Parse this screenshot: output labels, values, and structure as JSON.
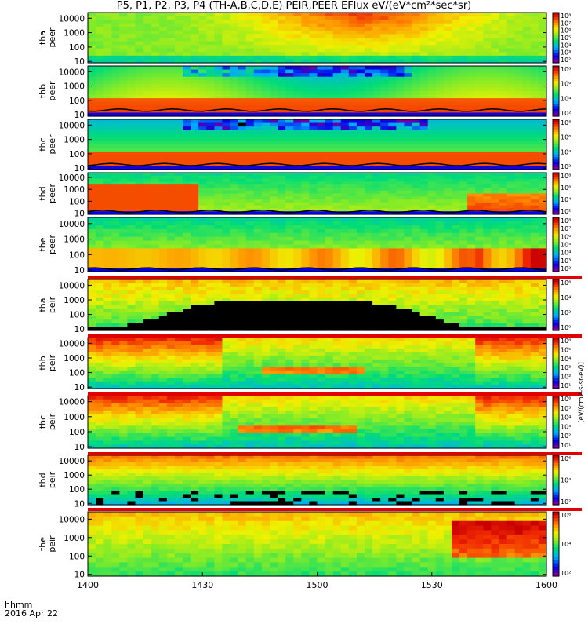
{
  "title": "P5, P1, P2, P3, P4 (TH-A,B,C,D,E) PEIR,PEER EFlux eV/(eV*cm²*sec*sr)",
  "footer": {
    "time_label": "hhmm",
    "date_label": "2016 Apr 22"
  },
  "chart_data": {
    "type": "heatmap",
    "x": {
      "ticks": [
        "1400",
        "1430",
        "1500",
        "1530",
        "1600"
      ],
      "range": [
        "1400",
        "1600"
      ]
    },
    "y_scale": "log",
    "colorbar_label": "[eV/(cm2-s-sr-eV)]",
    "panels": [
      {
        "label_top": "tha",
        "label_bottom": "peer",
        "yticks": [
          "10000",
          "1000",
          "100",
          "10"
        ],
        "ylim": [
          8,
          25000
        ],
        "cbar_ticks": [
          "10⁸",
          "10⁷",
          "10⁶",
          "10⁵",
          "10⁴",
          "10³",
          "10²"
        ]
      },
      {
        "label_top": "thb",
        "label_bottom": "peer",
        "yticks": [
          "10000",
          "1000",
          "100",
          "10"
        ],
        "ylim": [
          8,
          25000
        ],
        "cbar_ticks": [
          "10⁸",
          "10⁶",
          "10⁴",
          "10²"
        ]
      },
      {
        "label_top": "thc",
        "label_bottom": "peer",
        "yticks": [
          "10000",
          "1000",
          "100",
          "10"
        ],
        "ylim": [
          8,
          25000
        ],
        "cbar_ticks": [
          "10⁸",
          "10⁶",
          "10⁴",
          "10²"
        ]
      },
      {
        "label_top": "thd",
        "label_bottom": "peer",
        "yticks": [
          "10000",
          "1000",
          "100",
          "10"
        ],
        "ylim": [
          8,
          25000
        ],
        "cbar_ticks": [
          "10⁸",
          "10⁶",
          "10⁴",
          "10²"
        ]
      },
      {
        "label_top": "the",
        "label_bottom": "peer",
        "yticks": [
          "10000",
          "1000",
          "100",
          "10"
        ],
        "ylim": [
          8,
          25000
        ],
        "cbar_ticks": [
          "10⁸",
          "10⁷",
          "10⁶",
          "10⁵",
          "10⁴",
          "10³",
          "10²"
        ]
      },
      {
        "label_top": "tha",
        "label_bottom": "peir",
        "yticks": [
          "10000",
          "1000",
          "100",
          "10"
        ],
        "ylim": [
          8,
          25000
        ],
        "cbar_ticks": [
          "10⁶",
          "10⁴",
          "10²",
          "10⁰"
        ]
      },
      {
        "label_top": "thb",
        "label_bottom": "peir",
        "yticks": [
          "10000",
          "1000",
          "100",
          "10"
        ],
        "ylim": [
          8,
          25000
        ],
        "cbar_ticks": [
          "10⁶",
          "10⁵",
          "10⁴",
          "10³",
          "10²",
          "10¹"
        ]
      },
      {
        "label_top": "thc",
        "label_bottom": "peir",
        "yticks": [
          "10000",
          "1000",
          "100",
          "10"
        ],
        "ylim": [
          8,
          25000
        ],
        "cbar_ticks": [
          "10⁶",
          "10⁵",
          "10⁴",
          "10³",
          "10²",
          "10¹"
        ]
      },
      {
        "label_top": "thd",
        "label_bottom": "peir",
        "yticks": [
          "10000",
          "1000",
          "100",
          "10"
        ],
        "ylim": [
          8,
          25000
        ],
        "cbar_ticks": [
          "10⁶",
          "10⁴",
          "10²"
        ]
      },
      {
        "label_top": "the",
        "label_bottom": "peir",
        "yticks": [
          "10000",
          "1000",
          "100",
          "10"
        ],
        "ylim": [
          8,
          25000
        ],
        "cbar_ticks": [
          "10⁶",
          "10⁴",
          "10²"
        ]
      }
    ]
  }
}
